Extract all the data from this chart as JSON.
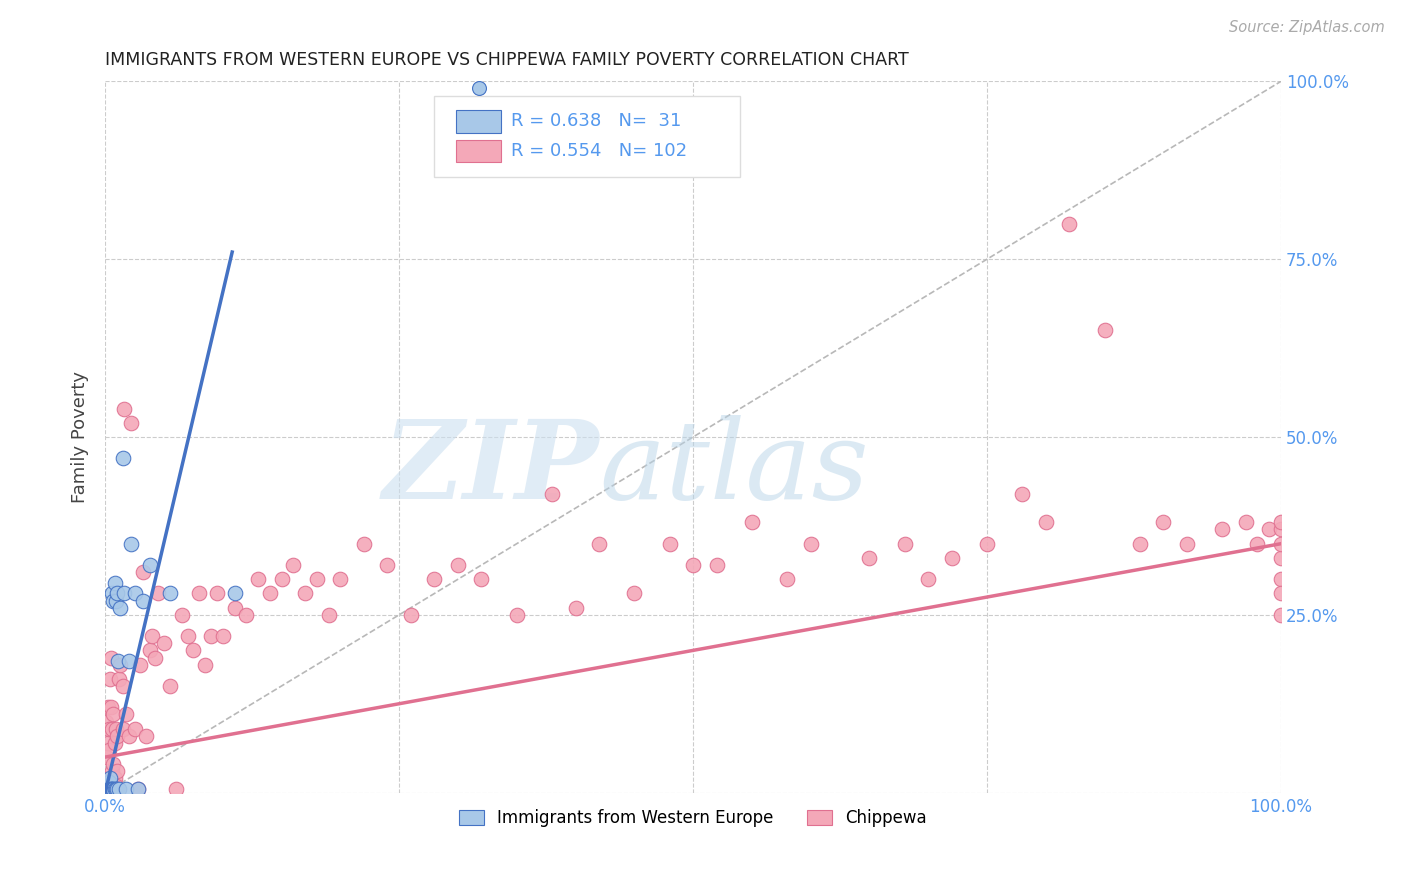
{
  "title": "IMMIGRANTS FROM WESTERN EUROPE VS CHIPPEWA FAMILY POVERTY CORRELATION CHART",
  "source": "Source: ZipAtlas.com",
  "ylabel": "Family Poverty",
  "xlim": [
    0,
    1
  ],
  "ylim": [
    0,
    1
  ],
  "blue_R": 0.638,
  "blue_N": 31,
  "pink_R": 0.554,
  "pink_N": 102,
  "blue_color": "#a8c8e8",
  "pink_color": "#f4a8b8",
  "blue_line_color": "#4472c4",
  "pink_line_color": "#e07090",
  "ref_line_color": "#b8b8b8",
  "grid_color": "#cccccc",
  "watermark_zip": "ZIP",
  "watermark_atlas": "atlas",
  "tick_color": "#5599ee",
  "ylabel_color": "#444444",
  "blue_scatter_x": [
    0.002,
    0.003,
    0.003,
    0.004,
    0.004,
    0.005,
    0.005,
    0.006,
    0.006,
    0.007,
    0.007,
    0.008,
    0.008,
    0.009,
    0.009,
    0.01,
    0.01,
    0.011,
    0.012,
    0.013,
    0.015,
    0.016,
    0.018,
    0.02,
    0.022,
    0.025,
    0.028,
    0.032,
    0.038,
    0.055,
    0.11
  ],
  "blue_scatter_y": [
    0.01,
    0.005,
    0.015,
    0.005,
    0.02,
    0.005,
    0.005,
    0.005,
    0.28,
    0.005,
    0.27,
    0.005,
    0.295,
    0.005,
    0.27,
    0.005,
    0.28,
    0.185,
    0.005,
    0.26,
    0.47,
    0.28,
    0.005,
    0.185,
    0.35,
    0.28,
    0.005,
    0.27,
    0.32,
    0.28,
    0.28
  ],
  "pink_scatter_x": [
    0.001,
    0.001,
    0.002,
    0.002,
    0.002,
    0.003,
    0.003,
    0.003,
    0.004,
    0.004,
    0.005,
    0.005,
    0.005,
    0.006,
    0.006,
    0.007,
    0.007,
    0.008,
    0.008,
    0.009,
    0.009,
    0.01,
    0.01,
    0.011,
    0.012,
    0.013,
    0.015,
    0.015,
    0.016,
    0.018,
    0.02,
    0.022,
    0.025,
    0.028,
    0.03,
    0.032,
    0.035,
    0.038,
    0.04,
    0.042,
    0.045,
    0.05,
    0.055,
    0.06,
    0.065,
    0.07,
    0.075,
    0.08,
    0.085,
    0.09,
    0.095,
    0.1,
    0.11,
    0.12,
    0.13,
    0.14,
    0.15,
    0.16,
    0.17,
    0.18,
    0.19,
    0.2,
    0.22,
    0.24,
    0.26,
    0.28,
    0.3,
    0.32,
    0.35,
    0.38,
    0.4,
    0.42,
    0.45,
    0.48,
    0.5,
    0.52,
    0.55,
    0.58,
    0.6,
    0.65,
    0.68,
    0.7,
    0.72,
    0.75,
    0.78,
    0.8,
    0.82,
    0.85,
    0.88,
    0.9,
    0.92,
    0.95,
    0.97,
    0.98,
    0.99,
    1.0,
    1.0,
    1.0,
    1.0,
    1.0,
    1.0,
    1.0
  ],
  "pink_scatter_y": [
    0.05,
    0.1,
    0.02,
    0.07,
    0.12,
    0.02,
    0.06,
    0.09,
    0.01,
    0.16,
    0.005,
    0.12,
    0.19,
    0.03,
    0.09,
    0.04,
    0.11,
    0.02,
    0.07,
    0.01,
    0.09,
    0.03,
    0.08,
    0.005,
    0.16,
    0.18,
    0.09,
    0.15,
    0.54,
    0.11,
    0.08,
    0.52,
    0.09,
    0.005,
    0.18,
    0.31,
    0.08,
    0.2,
    0.22,
    0.19,
    0.28,
    0.21,
    0.15,
    0.005,
    0.25,
    0.22,
    0.2,
    0.28,
    0.18,
    0.22,
    0.28,
    0.22,
    0.26,
    0.25,
    0.3,
    0.28,
    0.3,
    0.32,
    0.28,
    0.3,
    0.25,
    0.3,
    0.35,
    0.32,
    0.25,
    0.3,
    0.32,
    0.3,
    0.25,
    0.42,
    0.26,
    0.35,
    0.28,
    0.35,
    0.32,
    0.32,
    0.38,
    0.3,
    0.35,
    0.33,
    0.35,
    0.3,
    0.33,
    0.35,
    0.42,
    0.38,
    0.8,
    0.65,
    0.35,
    0.38,
    0.35,
    0.37,
    0.38,
    0.35,
    0.37,
    0.37,
    0.33,
    0.3,
    0.35,
    0.28,
    0.25,
    0.38
  ],
  "blue_line_x": [
    0.0,
    0.108
  ],
  "blue_line_y": [
    0.0,
    0.76
  ],
  "pink_line_x": [
    0.0,
    1.0
  ],
  "pink_line_y": [
    0.05,
    0.35
  ]
}
